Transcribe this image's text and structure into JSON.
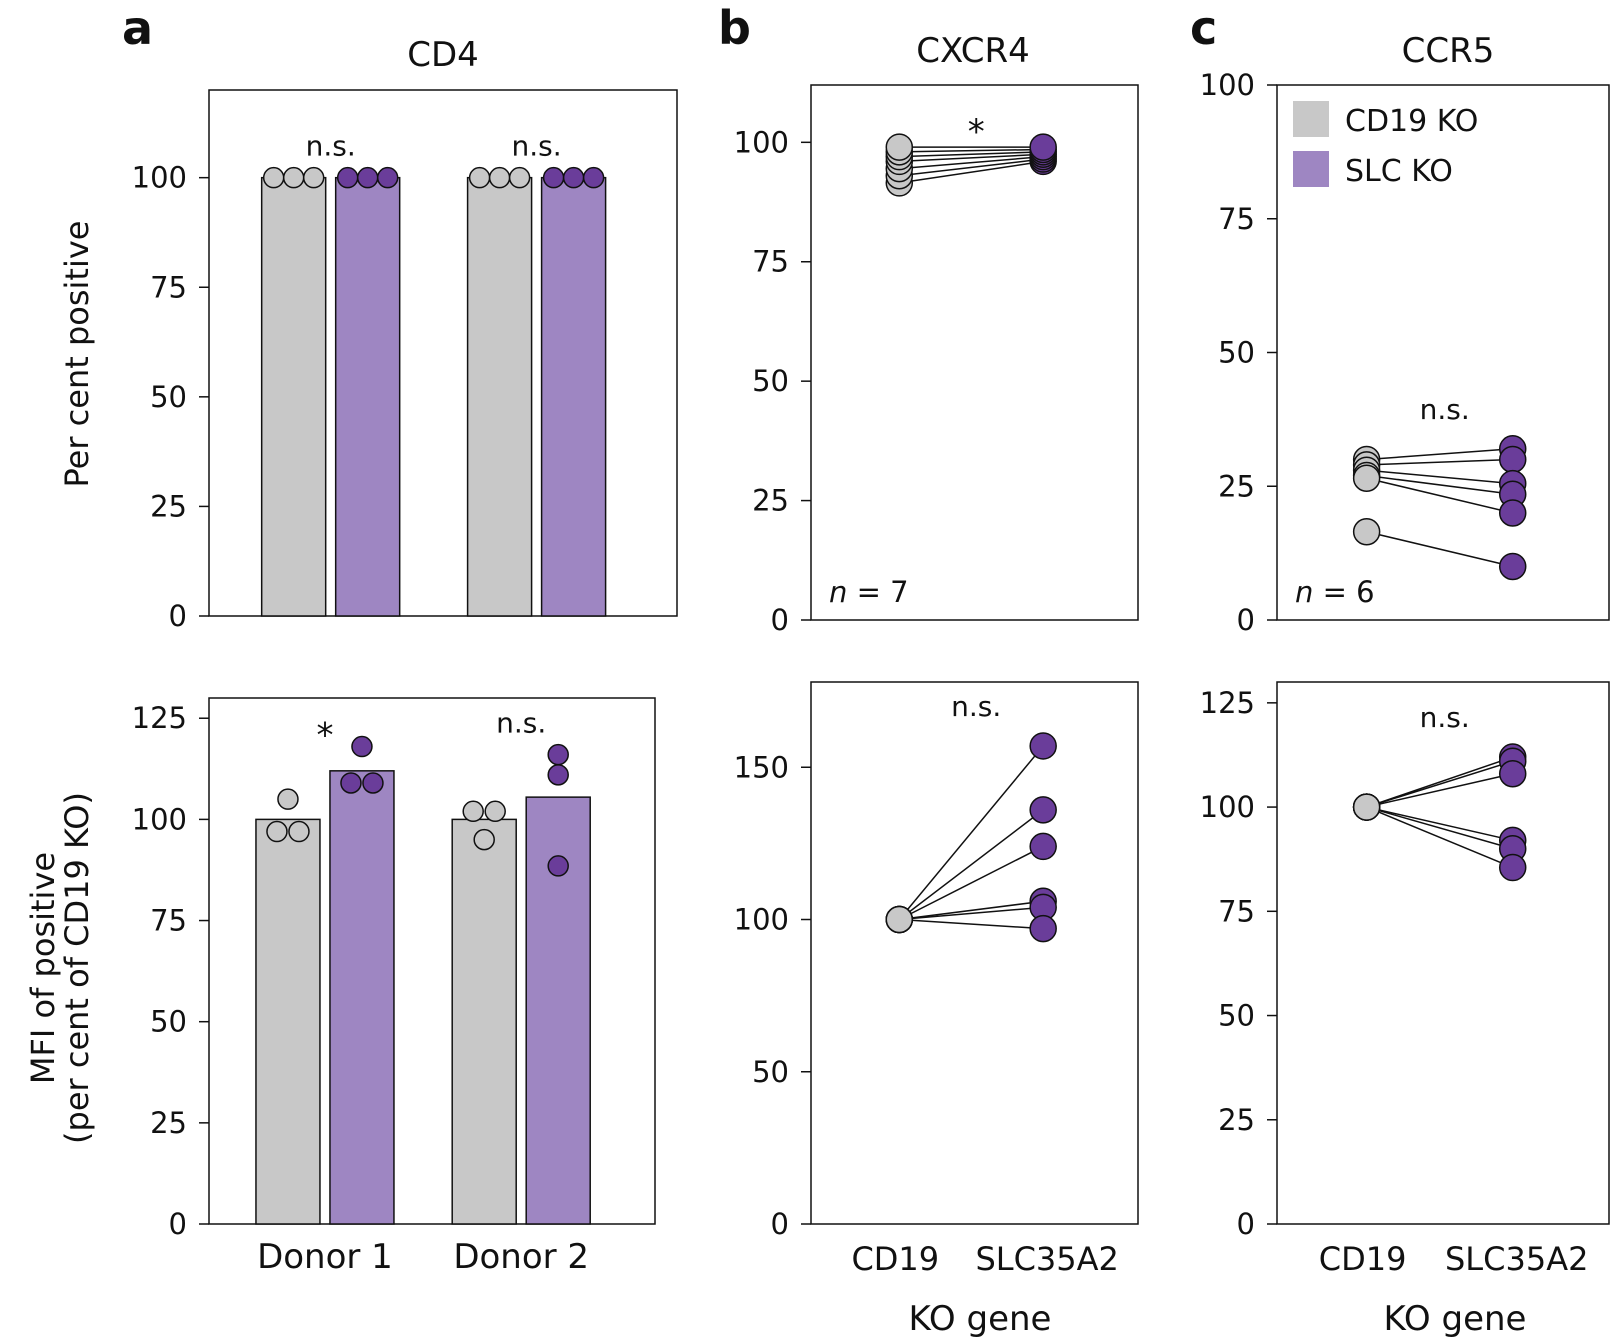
{
  "panel_labels": [
    "a",
    "b",
    "c"
  ],
  "colors": {
    "cd19": "#c8c8c8",
    "slc_bar": "#9e86c2",
    "slc_dot": "#6a3d9a",
    "line": "#111111"
  },
  "legend": [
    "CD19 KO",
    "SLC KO"
  ],
  "shared": {
    "y_label_top": "Per cent positive",
    "y_label_bottom_1": "MFI of positive",
    "y_label_bottom_2": "(per cent of CD19 KO)",
    "x_label": "KO gene"
  },
  "chart_data": [
    {
      "id": "a-top",
      "type": "bar",
      "title": "CD4",
      "ylabel": "Per cent positive",
      "ylim": [
        0,
        120
      ],
      "yticks": [
        0,
        25,
        50,
        75,
        100
      ],
      "categories": [
        "Donor 1",
        "Donor 2"
      ],
      "series": [
        {
          "name": "CD19 KO",
          "values": [
            100,
            100
          ],
          "points": [
            [
              100,
              100,
              100
            ],
            [
              100,
              100,
              100
            ]
          ]
        },
        {
          "name": "SLC KO",
          "values": [
            100,
            100
          ],
          "points": [
            [
              100,
              100,
              100
            ],
            [
              100,
              100,
              100
            ]
          ]
        }
      ],
      "annotations": [
        "n.s.",
        "n.s."
      ]
    },
    {
      "id": "a-bottom",
      "type": "bar",
      "title": "",
      "ylabel": "MFI of positive (per cent of CD19 KO)",
      "ylim": [
        0,
        130
      ],
      "yticks": [
        0,
        25,
        50,
        75,
        100,
        125
      ],
      "categories": [
        "Donor 1",
        "Donor 2"
      ],
      "series": [
        {
          "name": "CD19 KO",
          "values": [
            100,
            100
          ],
          "points": [
            [
              105,
              97,
              97
            ],
            [
              102,
              102,
              95
            ]
          ]
        },
        {
          "name": "SLC KO",
          "values": [
            112,
            105.5
          ],
          "points": [
            [
              118,
              109,
              109
            ],
            [
              116,
              111,
              88.5
            ]
          ]
        }
      ],
      "annotations": [
        "*",
        "n.s."
      ]
    },
    {
      "id": "b-top",
      "type": "scatter",
      "title": "CXCR4",
      "ylim": [
        0,
        112
      ],
      "yticks": [
        0,
        25,
        50,
        75,
        100
      ],
      "categories": [
        "CD19",
        "SLC35A2"
      ],
      "pairs": [
        [
          91.5,
          96
        ],
        [
          93,
          96.5
        ],
        [
          94.5,
          97
        ],
        [
          96,
          97.5
        ],
        [
          97,
          98
        ],
        [
          98,
          98.5
        ],
        [
          99,
          99
        ]
      ],
      "annotation": "*",
      "n_prefix": "n",
      "n_suffix": " = 7"
    },
    {
      "id": "b-bottom",
      "type": "scatter",
      "title": "",
      "ylim": [
        0,
        178
      ],
      "yticks": [
        0,
        50,
        100,
        150
      ],
      "categories": [
        "CD19",
        "SLC35A2"
      ],
      "xlabel": "KO gene",
      "pairs": [
        [
          100,
          157
        ],
        [
          100,
          136
        ],
        [
          100,
          124
        ],
        [
          100,
          106
        ],
        [
          100,
          104
        ],
        [
          100,
          97
        ]
      ],
      "annotation": "n.s."
    },
    {
      "id": "c-top",
      "type": "scatter",
      "title": "CCR5",
      "ylim": [
        0,
        100
      ],
      "yticks": [
        0,
        25,
        50,
        75,
        100
      ],
      "categories": [
        "CD19",
        "SLC35A2"
      ],
      "pairs": [
        [
          30,
          32
        ],
        [
          29,
          30
        ],
        [
          28,
          25.5
        ],
        [
          27,
          23.5
        ],
        [
          26.5,
          20
        ],
        [
          16.5,
          10
        ]
      ],
      "annotation": "n.s.",
      "n_prefix": "n",
      "n_suffix": " = 6"
    },
    {
      "id": "c-bottom",
      "type": "scatter",
      "title": "",
      "ylim": [
        0,
        130
      ],
      "yticks": [
        0,
        25,
        50,
        75,
        100,
        125
      ],
      "categories": [
        "CD19",
        "SLC35A2"
      ],
      "xlabel": "KO gene",
      "pairs": [
        [
          100,
          112
        ],
        [
          100,
          111
        ],
        [
          100,
          108
        ],
        [
          100,
          92
        ],
        [
          100,
          90
        ],
        [
          100,
          85.5
        ]
      ],
      "annotation": "n.s."
    }
  ]
}
